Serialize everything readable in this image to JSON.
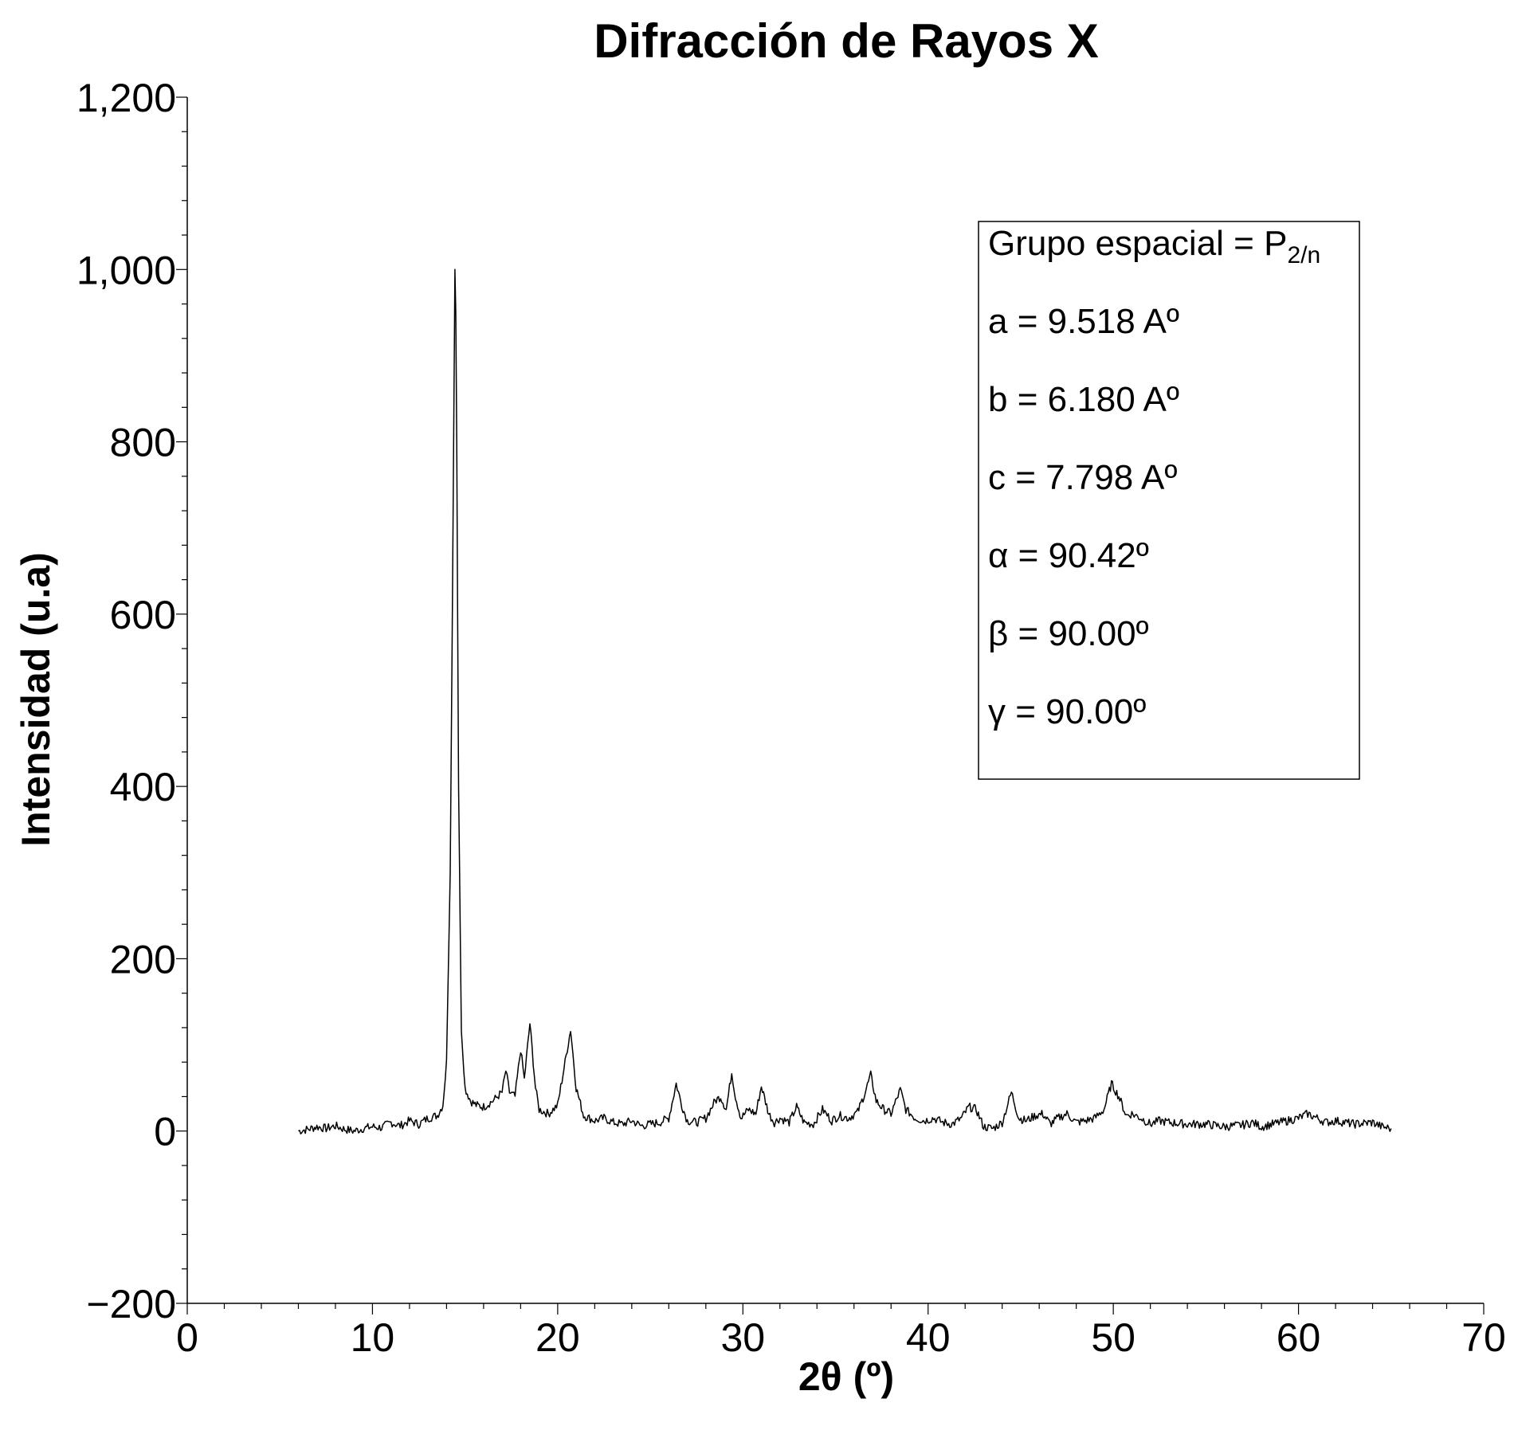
{
  "chart_data": {
    "type": "line",
    "title": "Difracción de Rayos X",
    "xlabel": "2θ (º)",
    "ylabel": "Intensidad (u.a)",
    "xlim": [
      0,
      70
    ],
    "ylim": [
      -200,
      1200
    ],
    "x_ticks": [
      0,
      10,
      20,
      30,
      40,
      50,
      60,
      70
    ],
    "x_tick_labels": [
      "0",
      "10",
      "20",
      "30",
      "40",
      "50",
      "60",
      "70"
    ],
    "y_ticks": [
      -200,
      0,
      200,
      400,
      600,
      800,
      1000,
      1200
    ],
    "y_tick_labels": [
      "−200",
      "0",
      "200",
      "400",
      "600",
      "800",
      "1,000",
      "1,200"
    ],
    "grid": false,
    "legend_placement": "top-right",
    "series": [
      {
        "color": "#000000",
        "x": [
          6.0,
          6.5,
          7.0,
          7.5,
          8.0,
          8.5,
          9.0,
          9.5,
          10.0,
          10.5,
          11.0,
          11.5,
          12.0,
          12.5,
          13.0,
          13.5,
          13.8,
          14.0,
          14.2,
          14.35,
          14.45,
          14.5,
          14.55,
          14.65,
          14.8,
          15.0,
          15.3,
          15.6,
          16.0,
          16.5,
          17.0,
          17.2,
          17.4,
          17.7,
          18.0,
          18.2,
          18.5,
          18.8,
          19.0,
          19.5,
          20.0,
          20.4,
          20.7,
          21.0,
          21.4,
          22.0,
          22.5,
          23.0,
          23.5,
          24.0,
          24.5,
          25.0,
          25.5,
          26.0,
          26.4,
          26.7,
          27.0,
          27.5,
          28.0,
          28.5,
          28.8,
          29.1,
          29.4,
          29.6,
          29.9,
          30.3,
          30.7,
          31.0,
          31.4,
          31.7,
          32.0,
          32.5,
          32.9,
          33.3,
          33.8,
          34.3,
          34.8,
          35.2,
          35.7,
          36.2,
          36.6,
          36.9,
          37.2,
          37.6,
          38.0,
          38.5,
          38.8,
          39.3,
          39.8,
          40.3,
          40.8,
          41.3,
          41.8,
          42.2,
          42.6,
          43.0,
          43.5,
          44.0,
          44.5,
          44.9,
          45.3,
          45.8,
          46.2,
          46.6,
          47.0,
          47.5,
          48.0,
          48.5,
          49.0,
          49.5,
          49.9,
          50.3,
          50.7,
          51.0,
          51.5,
          52.0,
          52.5,
          53.0,
          54.0,
          55.0,
          56.0,
          57.0,
          57.5,
          58.0,
          59.0,
          60.0,
          60.5,
          61.0,
          61.5,
          62.0,
          63.0,
          64.0,
          64.5,
          65.0
        ],
        "y": [
          0,
          2,
          5,
          3,
          6,
          2,
          0,
          3,
          5,
          4,
          10,
          6,
          12,
          8,
          15,
          18,
          30,
          80,
          300,
          700,
          1000,
          950,
          800,
          400,
          120,
          50,
          35,
          30,
          28,
          35,
          45,
          70,
          45,
          40,
          95,
          60,
          125,
          50,
          25,
          20,
          30,
          80,
          118,
          50,
          18,
          12,
          15,
          10,
          8,
          12,
          6,
          8,
          10,
          15,
          55,
          30,
          12,
          10,
          15,
          35,
          40,
          25,
          68,
          40,
          15,
          25,
          20,
          52,
          20,
          10,
          15,
          10,
          28,
          10,
          8,
          25,
          12,
          18,
          15,
          22,
          45,
          65,
          35,
          25,
          20,
          48,
          25,
          15,
          12,
          15,
          10,
          8,
          15,
          28,
          25,
          5,
          3,
          10,
          45,
          15,
          12,
          18,
          20,
          8,
          15,
          20,
          10,
          12,
          15,
          25,
          55,
          40,
          18,
          20,
          15,
          8,
          12,
          10,
          8,
          8,
          5,
          7,
          10,
          5,
          10,
          15,
          20,
          15,
          10,
          12,
          8,
          10,
          5,
          3
        ]
      }
    ]
  },
  "legend": {
    "line1_prefix": "Grupo espacial = P",
    "line1_sub": "2/n",
    "lines": [
      "a = 9.518 Aº",
      "b = 6.180 Aº",
      "c = 7.798 Aº",
      "α = 90.42º",
      "β = 90.00º",
      "γ = 90.00º"
    ]
  }
}
